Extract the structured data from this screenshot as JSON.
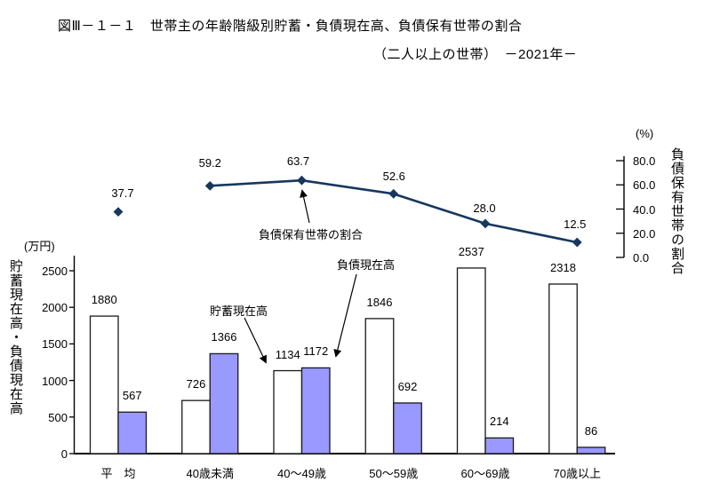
{
  "title": {
    "line1": "図Ⅲ－１－１　世帯主の年齢階級別貯蓄・負債現在高、負債保有世帯の割合",
    "line2": "（二人以上の世帯）　－2021年－"
  },
  "chart_data": {
    "type": "bar+line",
    "categories": [
      "平　均",
      "40歳未満",
      "40～49歳",
      "50～59歳",
      "60～69歳",
      "70歳以上"
    ],
    "series": [
      {
        "name": "貯蓄現在高",
        "type": "bar",
        "color": "#FFFFFF",
        "values": [
          1880,
          726,
          1134,
          1846,
          2537,
          2318
        ]
      },
      {
        "name": "負債現在高",
        "type": "bar",
        "color": "#9999FF",
        "values": [
          567,
          1366,
          1172,
          692,
          214,
          86
        ]
      },
      {
        "name": "負債保有世帯の割合",
        "type": "line",
        "axis": "right",
        "color": "#17375E",
        "values": [
          37.7,
          59.2,
          63.7,
          52.6,
          28.0,
          12.5
        ],
        "labels": [
          "37.7",
          "59.2",
          "63.7",
          "52.6",
          "28.0",
          "12.5"
        ],
        "first_point_detached": true
      }
    ],
    "left_axis": {
      "unit_label": "(万円)",
      "title": "貯蓄現在高・負債現在高",
      "min": 0,
      "max": 2500,
      "tick_step": 500,
      "tick_labels": [
        "2500",
        "2000",
        "1500",
        "1000",
        "500",
        "0"
      ],
      "tick_values": [
        2500,
        2000,
        1500,
        1000,
        500,
        0
      ]
    },
    "right_axis": {
      "unit_label": "(%)",
      "title": "負債保有世帯の割合",
      "min": 0,
      "max": 80,
      "tick_step": 20,
      "tick_labels": [
        "80.0",
        "60.0",
        "40.0",
        "20.0",
        "0.0"
      ],
      "tick_values": [
        80,
        60,
        40,
        20,
        0
      ]
    },
    "annotations": [
      "負債保有世帯の割合",
      "貯蓄現在高",
      "負債現在高"
    ],
    "legend": "none",
    "grid": false
  }
}
